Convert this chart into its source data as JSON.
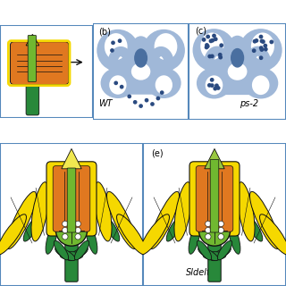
{
  "fig_bg": "#ffffff",
  "border_color": "#5588bb",
  "blue_light": "#a0b8d8",
  "blue_mid": "#7899c0",
  "blue_oval": "#4a6fa0",
  "dot_color": "#2a4a80",
  "yellow_main": "#f5d800",
  "yellow_light": "#f0e850",
  "orange_main": "#e07820",
  "orange_light": "#f0a040",
  "green_main": "#28883a",
  "green_light": "#70b830",
  "green_tip": "#98c840",
  "black_line": "#111111",
  "label_b": "(b)",
  "label_c": "(c)",
  "label_e": "(e)",
  "label_wt": "WT",
  "label_ps2": "ps-2",
  "label_sldelta": "Sldelta",
  "annotation_fontsize": 7
}
